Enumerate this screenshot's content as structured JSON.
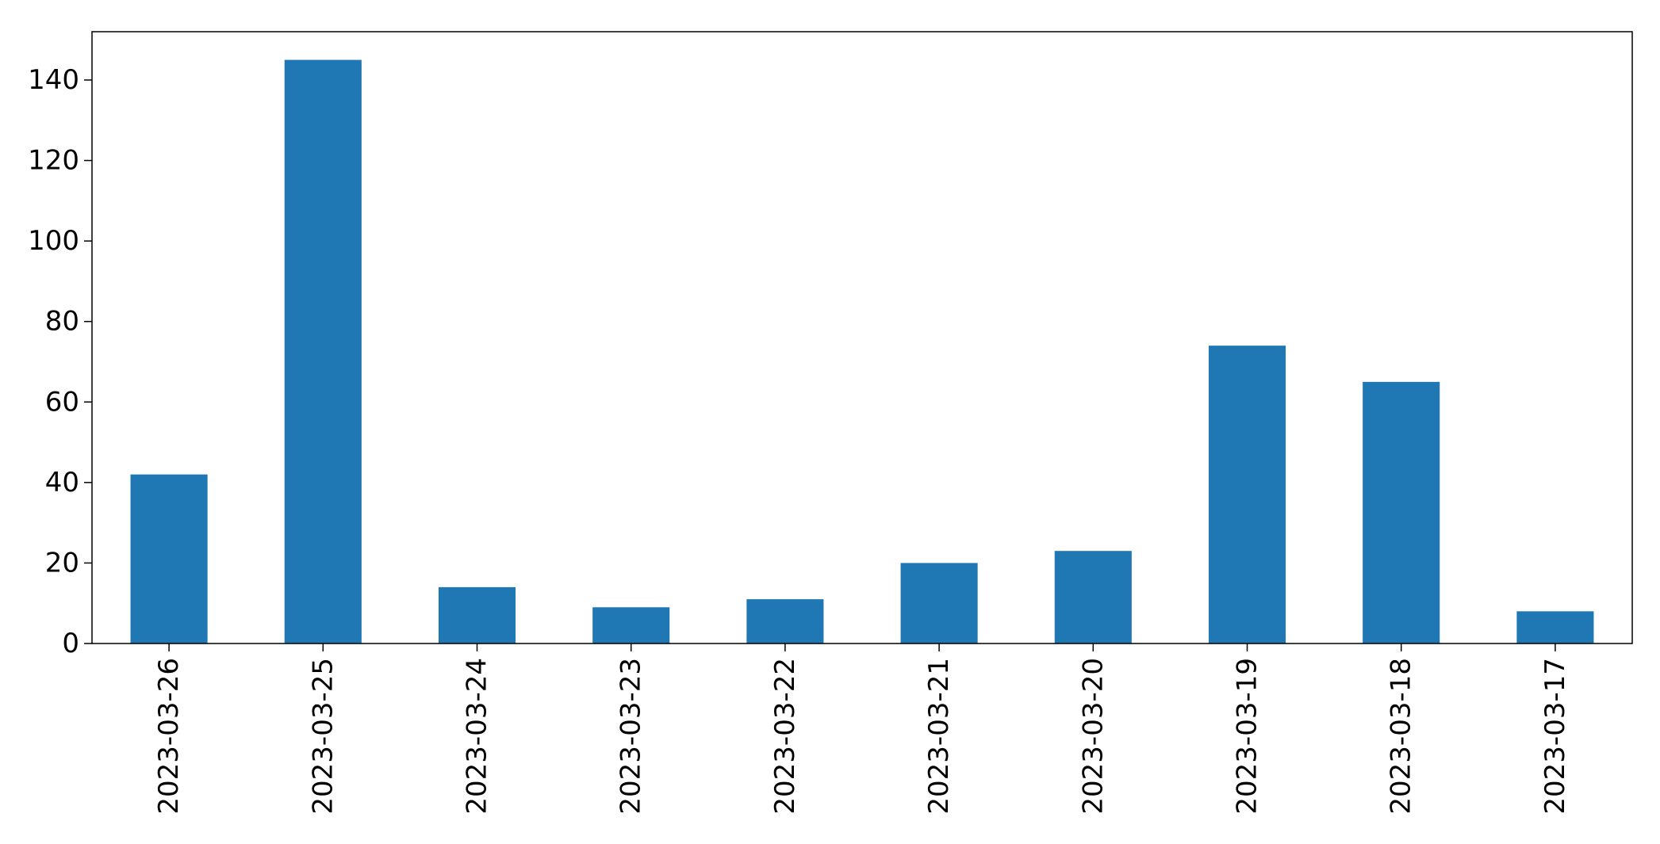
{
  "chart_data": {
    "type": "bar",
    "title": "",
    "xlabel": "",
    "ylabel": "",
    "categories": [
      "2023-03-26",
      "2023-03-25",
      "2023-03-24",
      "2023-03-23",
      "2023-03-22",
      "2023-03-21",
      "2023-03-20",
      "2023-03-19",
      "2023-03-18",
      "2023-03-17"
    ],
    "values": [
      42,
      145,
      14,
      9,
      11,
      20,
      23,
      74,
      65,
      8
    ],
    "ylim": [
      0,
      152
    ],
    "yticks": [
      0,
      20,
      40,
      60,
      80,
      100,
      120,
      140
    ],
    "ytick_labels": [
      "0",
      "20",
      "40",
      "60",
      "80",
      "100",
      "120",
      "140"
    ],
    "bar_color": "#1f77b4",
    "grid": false,
    "legend": "none"
  }
}
